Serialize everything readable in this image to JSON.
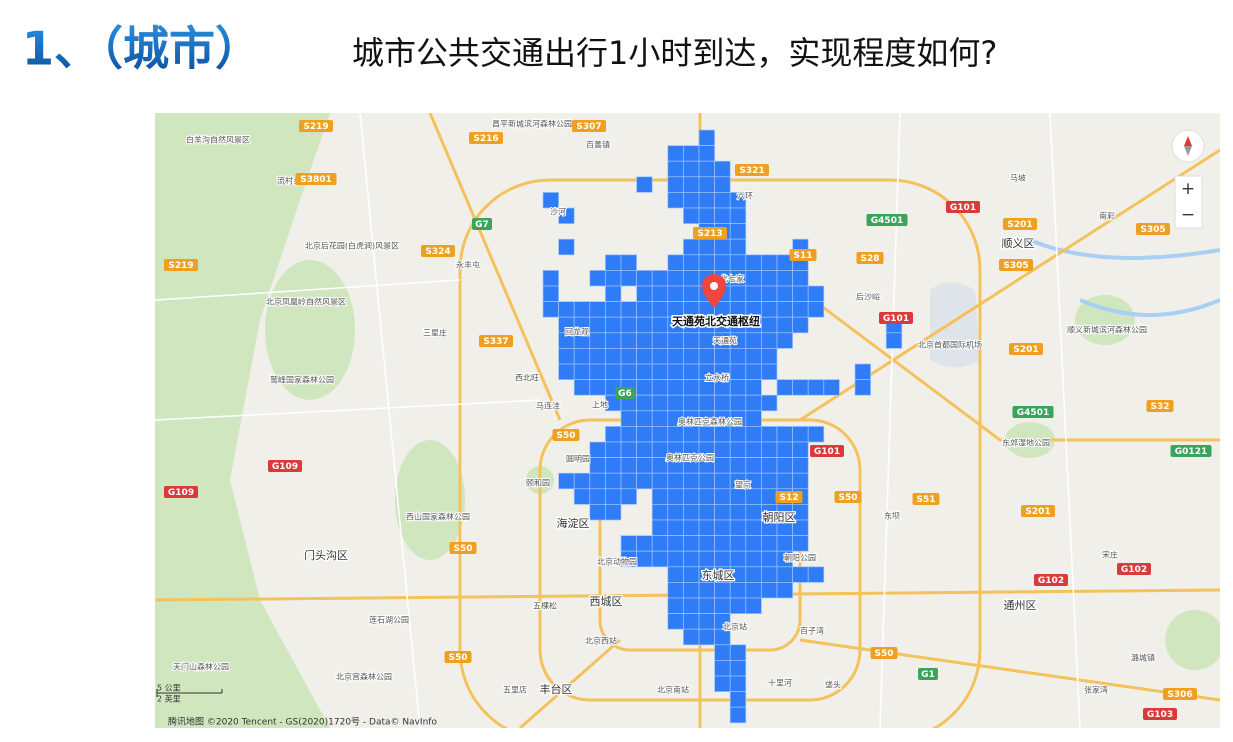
{
  "header": {
    "section": "1、（城市）",
    "question": "城市公共交通出行1小时到达，实现程度如何?"
  },
  "map": {
    "marker_label": "天通苑北交通枢纽",
    "districts": [
      "海淀区",
      "朝阳区",
      "东城区",
      "西城区",
      "丰台区",
      "门头沟区",
      "顺义区",
      "通州区"
    ],
    "places": [
      "白羊沟自然风景区",
      "流村乡",
      "北京后花园(白虎涧)风景区",
      "昌平新城滨河森林公园",
      "百善镇",
      "沙河",
      "六环",
      "北七家",
      "天通苑",
      "立水桥",
      "奥林匹克森林公园",
      "奥林匹克公园",
      "望京",
      "北京首都国际机场",
      "北京凤凰岭自然风景区",
      "鹫峰国家森林公园",
      "西山国家森林公园",
      "颐和园",
      "圆明园",
      "北京动物园",
      "北京西站",
      "北京站",
      "北京南站",
      "天门山森林公园",
      "北京宫森林公园",
      "莲石湖公园",
      "朝阳公园",
      "东郊湿地公园",
      "顺义新城滨河森林公园",
      "马坡",
      "南彩",
      "后沙峪",
      "西北旺",
      "马连洼",
      "上地",
      "回龙观",
      "五棵松",
      "十里河",
      "垡头",
      "百子湾",
      "五里店",
      "宋庄",
      "张家湾",
      "永丰屯",
      "三星庄",
      "东坝",
      "潞城镇"
    ],
    "shields": [
      "S219",
      "S216",
      "S307",
      "S321",
      "S3801",
      "G7",
      "S324",
      "S213",
      "S11",
      "S28",
      "G4501",
      "G101",
      "S201",
      "S305",
      "S305",
      "S219",
      "S337",
      "G6",
      "S50",
      "G101",
      "S12",
      "S50",
      "S51",
      "S201",
      "G109",
      "G109",
      "S50",
      "S50",
      "S50",
      "G1",
      "G102",
      "G102",
      "S32",
      "G4501",
      "G0121",
      "S201",
      "G101",
      "S306",
      "G103"
    ],
    "zoom_in": "+",
    "zoom_out": "−",
    "scale_km": "5 公里",
    "scale_mi": "2 英里",
    "attribution": "腾讯地图 ©2020 Tencent - GS(2020)1720号 - Data© NavInfo"
  }
}
